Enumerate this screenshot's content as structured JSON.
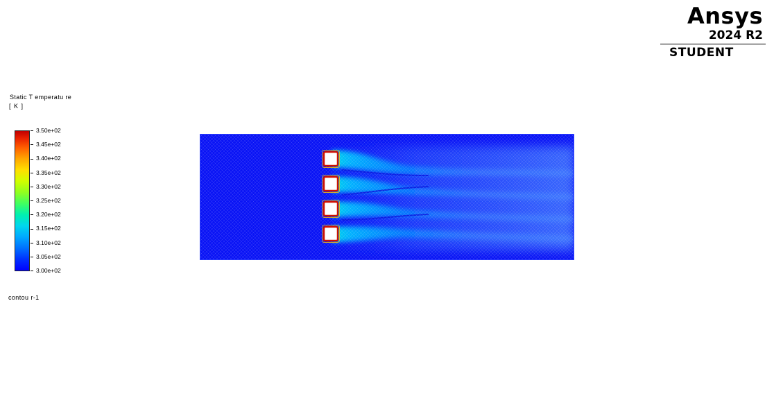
{
  "logo": {
    "brand": "Ansys",
    "version": "2024 R2",
    "edition": "STUDENT"
  },
  "legend": {
    "title": "Static T emperatu re",
    "unit": "[ K ]",
    "ticks": [
      "3.50e+02",
      "3.45e+02",
      "3.40e+02",
      "3.35e+02",
      "3.30e+02",
      "3.25e+02",
      "3.20e+02",
      "3.15e+02",
      "3.10e+02",
      "3.05e+02",
      "3.00e+02"
    ],
    "colormap": "rainbow",
    "colors": {
      "min": "#0000ff",
      "max": "#c00000"
    }
  },
  "contour": {
    "name": "contou r-1"
  },
  "domain": {
    "background_color": "#0a14f5",
    "obstacles": 4,
    "obstacle_edge_color": "#d01000"
  }
}
